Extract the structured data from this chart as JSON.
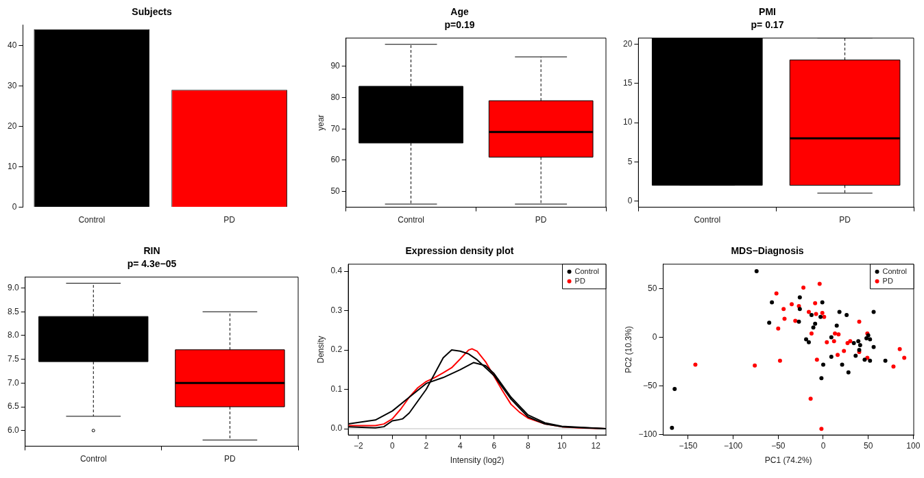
{
  "chart_data": [
    {
      "type": "bar",
      "title": "Subjects",
      "categories": [
        "Control",
        "PD"
      ],
      "values": [
        44,
        29
      ],
      "colors": [
        "#000000",
        "#ff0000"
      ],
      "ylim": [
        0,
        45
      ],
      "yticks": [
        0,
        10,
        20,
        30,
        40
      ]
    },
    {
      "type": "box",
      "title": "Age",
      "subtitle": "p=0.19",
      "ylabel": "year",
      "categories": [
        "Control",
        "PD"
      ],
      "colors": [
        "#000000",
        "#ff0000"
      ],
      "ylim": [
        45,
        99
      ],
      "yticks": [
        50,
        60,
        70,
        80,
        90
      ],
      "boxes": [
        {
          "low": 46,
          "q1": 65.5,
          "median": null,
          "q3": 83.6,
          "high": 97
        },
        {
          "low": 46,
          "q1": 61,
          "median": 69,
          "q3": 79,
          "high": 93
        }
      ]
    },
    {
      "type": "box",
      "title": "PMI",
      "subtitle": "p= 0.17",
      "categories": [
        "Control",
        "PD"
      ],
      "colors": [
        "#000000",
        "#ff0000"
      ],
      "ylim": [
        -0.8,
        20.8
      ],
      "yticks": [
        0,
        5,
        10,
        15,
        20
      ],
      "boxes": [
        {
          "low": 2,
          "q1": 2,
          "median": null,
          "q3": 20.8,
          "high": null
        },
        {
          "low": 1,
          "q1": 2,
          "median": 8,
          "q3": 18,
          "high": 20.8
        }
      ]
    },
    {
      "type": "box",
      "title": "RIN",
      "subtitle": "p= 4.3e−05",
      "categories": [
        "Control",
        "PD"
      ],
      "colors": [
        "#000000",
        "#ff0000"
      ],
      "ylim": [
        5.67,
        9.23
      ],
      "yticks": [
        {
          "value": 6,
          "label": "6.0"
        },
        6.5,
        {
          "value": 7,
          "label": "7.0"
        },
        7.5,
        {
          "value": 8,
          "label": "8.0"
        },
        8.5,
        {
          "value": 9,
          "label": "9.0"
        }
      ],
      "boxes": [
        {
          "low": 6.3,
          "q1": 7.45,
          "median": null,
          "q3": 8.4,
          "high": 9.1,
          "outliers": [
            6.0
          ]
        },
        {
          "low": 5.8,
          "q1": 6.5,
          "median": 7.0,
          "q3": 7.7,
          "high": 8.5
        }
      ]
    },
    {
      "type": "line",
      "title": "Expression density plot",
      "xlabel": "Intensity (log2)",
      "ylabel": "Density",
      "legend": "top right",
      "marker": "none",
      "xlim": [
        -2.6,
        12.6
      ],
      "ylim": [
        -0.016,
        0.418
      ],
      "xticks": [
        {
          "value": -2,
          "label": "−2"
        },
        0,
        2,
        4,
        6,
        8,
        10,
        12
      ],
      "yticks": [
        {
          "value": 0,
          "label": "0.0"
        },
        0.1,
        0.2,
        0.3,
        0.4
      ],
      "ref_lines": [
        {
          "axis": "y",
          "value": 0,
          "color": "#bebebe"
        }
      ],
      "series": [
        {
          "name": "Control",
          "color": "#000000",
          "x": [
            -2.6,
            -1,
            0,
            1,
            2,
            3,
            4,
            4.8,
            5.5,
            6,
            7,
            8,
            9,
            10,
            12.6
          ],
          "values": [
            0.012,
            0.022,
            0.045,
            0.08,
            0.115,
            0.13,
            0.15,
            0.168,
            0.16,
            0.14,
            0.08,
            0.035,
            0.015,
            0.006,
            0
          ]
        },
        {
          "color": "#000000",
          "x": [
            -2.6,
            -1,
            -0.5,
            0,
            0.3,
            0.6,
            1,
            1.5,
            2,
            2.5,
            3,
            3.5,
            4,
            4.5,
            5,
            6,
            7,
            8,
            9,
            10,
            12.6
          ],
          "values": [
            0.005,
            0.002,
            0.005,
            0.02,
            0.022,
            0.025,
            0.04,
            0.07,
            0.1,
            0.14,
            0.18,
            0.2,
            0.197,
            0.19,
            0.175,
            0.135,
            0.075,
            0.03,
            0.012,
            0.005,
            0
          ]
        },
        {
          "name": "PD",
          "color": "#ff0000",
          "x": [
            -2.6,
            -1,
            -0.5,
            0,
            0.5,
            1,
            1.5,
            2,
            2.5,
            3,
            3.5,
            4,
            4.5,
            4.7,
            5,
            5.5,
            6,
            6.5,
            7,
            7.5,
            8,
            9,
            10,
            11,
            12.6
          ],
          "values": [
            0.008,
            0.008,
            0.012,
            0.025,
            0.05,
            0.08,
            0.104,
            0.12,
            0.13,
            0.142,
            0.155,
            0.177,
            0.2,
            0.203,
            0.197,
            0.17,
            0.133,
            0.096,
            0.062,
            0.042,
            0.027,
            0.012,
            0.005,
            0.002,
            0
          ]
        }
      ]
    },
    {
      "type": "scatter",
      "title": "MDS−Diagnosis",
      "xlabel": "PC1 (74.2%)",
      "ylabel": "PC2 (10.3%)",
      "legend": "top right",
      "marker": "circle",
      "xlim": [
        -177.8,
        100.5
      ],
      "ylim": [
        -100.3,
        75.1
      ],
      "xticks": [
        {
          "value": -150,
          "label": "−150"
        },
        {
          "value": -100,
          "label": "−100"
        },
        {
          "value": -50,
          "label": "−50"
        },
        0,
        50,
        100
      ],
      "yticks": [
        {
          "value": -100,
          "label": "−100"
        },
        {
          "value": -50,
          "label": "−50"
        },
        0,
        50
      ],
      "series": [
        {
          "name": "Control",
          "color": "#000000",
          "x": [
            -74,
            -57,
            -60,
            -26,
            -26,
            -27,
            -13,
            -9,
            -11,
            -19,
            -16,
            -3,
            -1,
            9,
            15,
            18,
            26,
            9,
            -2,
            0,
            21,
            28,
            34,
            36,
            39,
            40,
            41,
            48,
            50,
            52,
            46,
            52,
            56,
            56,
            69,
            -165,
            -168
          ],
          "values": [
            68,
            36,
            15,
            41,
            29,
            16,
            23,
            14,
            10,
            -2,
            -5,
            21,
            36,
            0,
            12,
            26,
            23,
            -20,
            -42,
            -28,
            -28,
            -36,
            -6,
            -19,
            -4,
            -13,
            -8,
            -1,
            2,
            -2,
            -23,
            -24,
            -10,
            26,
            -24,
            -53,
            -93
          ]
        },
        {
          "name": "PD",
          "color": "#ff0000",
          "x": [
            -52,
            -22,
            -4,
            -35,
            -44,
            -43,
            -27,
            -31,
            -50,
            -16,
            -9,
            -8,
            -1,
            1,
            -13,
            4,
            13,
            12,
            17,
            16,
            23,
            27,
            30,
            40,
            40,
            49,
            49,
            85,
            78,
            90,
            -48,
            -76,
            -142,
            -7,
            -14,
            -2
          ],
          "values": [
            45,
            51,
            55,
            34,
            29,
            19,
            32,
            17,
            9,
            26,
            35,
            24,
            25,
            21,
            4,
            -5,
            4,
            -4,
            3,
            -18,
            -14,
            -6,
            -4,
            16,
            -15,
            4,
            -21,
            -12,
            -30,
            -21,
            -24,
            -29,
            -28,
            -23,
            -63,
            -94
          ]
        }
      ]
    }
  ]
}
